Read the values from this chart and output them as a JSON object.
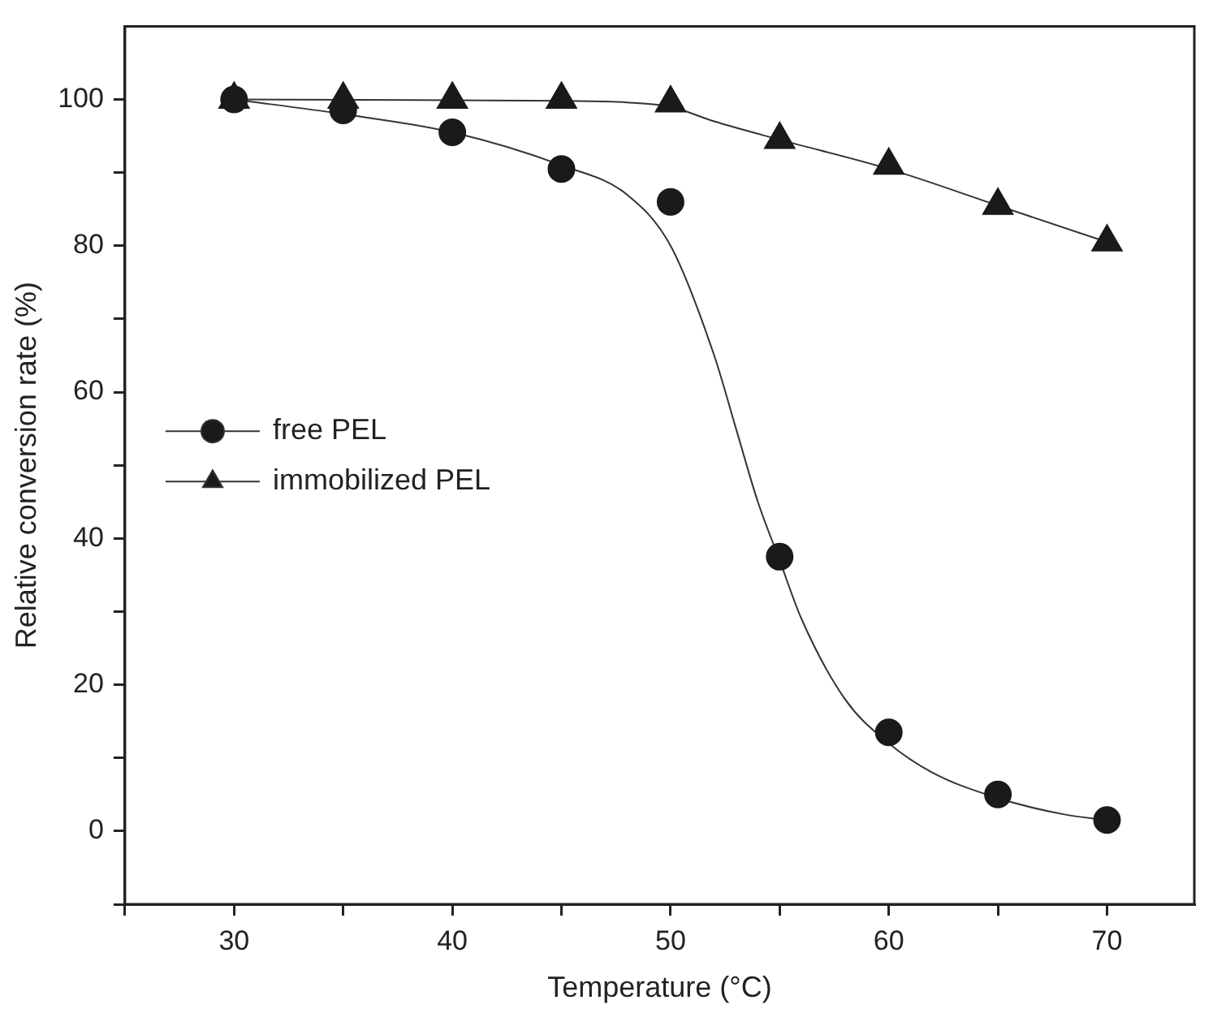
{
  "chart_data": {
    "type": "scatter",
    "xlabel": "Temperature (°C)",
    "ylabel": "Relative conversion rate (%)",
    "xlim": [
      25,
      74
    ],
    "xticks": [
      {
        "value": 25,
        "label": null
      },
      30,
      {
        "value": 35,
        "label": null
      },
      40,
      {
        "value": 45,
        "label": null
      },
      50,
      {
        "value": 55,
        "label": null
      },
      60,
      {
        "value": 65,
        "label": null
      },
      70
    ],
    "ylim": [
      -10,
      110
    ],
    "yticks": [
      {
        "value": -10,
        "label": null
      },
      0,
      {
        "value": 10,
        "label": null
      },
      20,
      {
        "value": 30,
        "label": null
      },
      40,
      {
        "value": 50,
        "label": null
      },
      60,
      {
        "value": 70,
        "label": null
      },
      80,
      {
        "value": 90,
        "label": null
      },
      100
    ],
    "grid": false,
    "legend": "left",
    "series": [
      {
        "name": "free PEL",
        "marker": "circle",
        "color": "#1a1a1a",
        "x": [
          30,
          35,
          40,
          45,
          50,
          55,
          60,
          65,
          70
        ],
        "values": [
          100,
          98.5,
          95.5,
          90.5,
          86,
          37.5,
          13.5,
          5,
          1.5
        ]
      },
      {
        "name": "immobilized PEL",
        "marker": "triangle",
        "color": "#1a1a1a",
        "x": [
          30,
          35,
          40,
          45,
          50,
          55,
          60,
          65,
          70
        ],
        "values": [
          100,
          100,
          100,
          100,
          99.5,
          94.5,
          91,
          85.5,
          80.5
        ]
      },
      {
        "type": "line",
        "marker": "none",
        "color": "#333333",
        "x": [
          30,
          35,
          40,
          45,
          48,
          50,
          52,
          53,
          54,
          55,
          56,
          58,
          60,
          62,
          65,
          68,
          70
        ],
        "values": [
          100,
          98,
          95.5,
          91,
          87,
          80,
          65,
          55,
          45,
          37,
          29,
          18,
          12,
          8,
          4.5,
          2.3,
          1.5
        ]
      },
      {
        "type": "line",
        "marker": "none",
        "color": "#333333",
        "x": [
          30,
          40,
          45,
          48,
          50,
          52,
          55,
          60,
          65,
          70
        ],
        "values": [
          100,
          99.9,
          99.8,
          99.6,
          99,
          97,
          94.5,
          90.5,
          85.5,
          80.5
        ]
      }
    ]
  }
}
